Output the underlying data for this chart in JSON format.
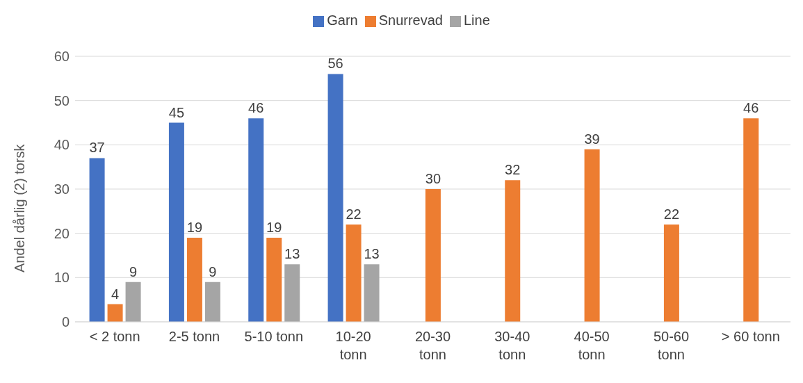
{
  "chart_data": {
    "type": "bar",
    "ylabel": "Andel dårlig (2) torsk",
    "categories": [
      "< 2 tonn",
      "2-5 tonn",
      "5-10 tonn",
      "10-20 tonn",
      "20-30 tonn",
      "30-40 tonn",
      "40-50 tonn",
      "50-60 tonn",
      "> 60 tonn"
    ],
    "series": [
      {
        "name": "Garn",
        "color": "#4472c4",
        "values": [
          37,
          45,
          46,
          56,
          null,
          null,
          null,
          null,
          null
        ]
      },
      {
        "name": "Snurrevad",
        "color": "#ed7d31",
        "values": [
          4,
          19,
          19,
          22,
          30,
          32,
          39,
          22,
          46
        ]
      },
      {
        "name": "Line",
        "color": "#a5a5a5",
        "values": [
          9,
          9,
          13,
          13,
          null,
          null,
          null,
          null,
          null
        ]
      }
    ],
    "ylim": [
      0,
      60
    ],
    "yticks": [
      0,
      10,
      20,
      30,
      40,
      50,
      60
    ],
    "grid": "y",
    "legend": "top",
    "data_labels": true
  }
}
